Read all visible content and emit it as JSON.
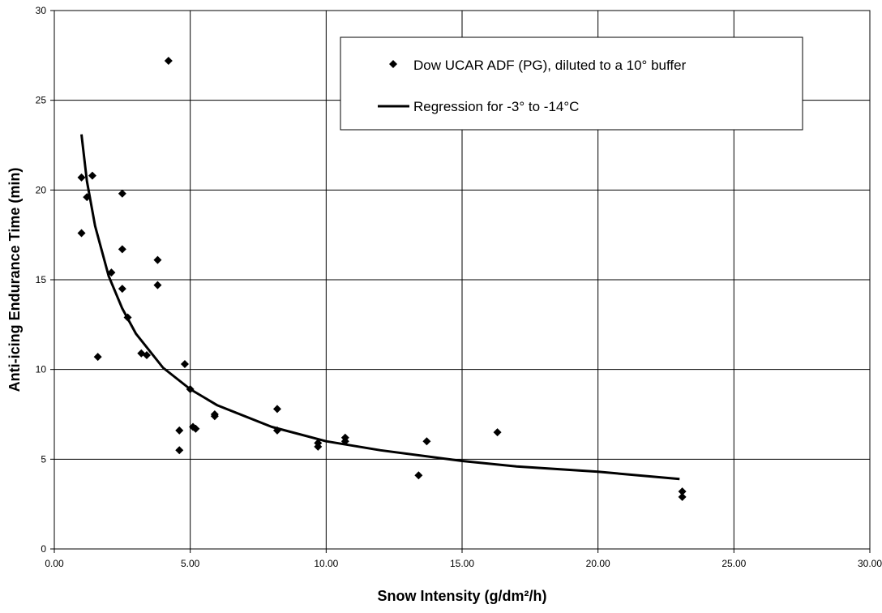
{
  "chart_data": {
    "type": "scatter",
    "xlabel": "Snow Intensity (g/dm²/h)",
    "ylabel": "Anti-icing Endurance Time (min)",
    "xlim": [
      0,
      30
    ],
    "ylim": [
      0,
      30
    ],
    "x_ticks": [
      "0.00",
      "5.00",
      "10.00",
      "15.00",
      "20.00",
      "25.00",
      "30.00"
    ],
    "y_ticks": [
      "0",
      "5",
      "10",
      "15",
      "20",
      "25",
      "30"
    ],
    "grid": true,
    "legend_position": "top-right",
    "series": [
      {
        "name": "Dow UCAR ADF (PG), diluted to a 10° buffer",
        "kind": "scatter",
        "marker": "diamond",
        "color": "#000000",
        "points": [
          [
            1.0,
            20.7
          ],
          [
            1.0,
            17.6
          ],
          [
            1.2,
            19.6
          ],
          [
            1.4,
            20.8
          ],
          [
            1.6,
            10.7
          ],
          [
            2.1,
            15.4
          ],
          [
            2.5,
            19.8
          ],
          [
            2.5,
            16.7
          ],
          [
            2.5,
            14.5
          ],
          [
            2.7,
            12.9
          ],
          [
            3.2,
            10.9
          ],
          [
            3.4,
            10.8
          ],
          [
            3.8,
            16.1
          ],
          [
            3.8,
            14.7
          ],
          [
            4.2,
            27.2
          ],
          [
            4.6,
            6.6
          ],
          [
            4.6,
            5.5
          ],
          [
            4.8,
            10.3
          ],
          [
            5.0,
            8.9
          ],
          [
            5.1,
            6.8
          ],
          [
            5.2,
            6.7
          ],
          [
            5.9,
            7.5
          ],
          [
            5.9,
            7.4
          ],
          [
            8.2,
            7.8
          ],
          [
            8.2,
            6.6
          ],
          [
            9.7,
            5.9
          ],
          [
            9.7,
            5.7
          ],
          [
            10.7,
            6.2
          ],
          [
            10.7,
            6.0
          ],
          [
            13.4,
            4.1
          ],
          [
            13.7,
            6.0
          ],
          [
            16.3,
            6.5
          ],
          [
            23.1,
            3.2
          ],
          [
            23.1,
            2.9
          ]
        ]
      },
      {
        "name": "Regression for -3° to -14°C",
        "kind": "line",
        "color": "#000000",
        "points": [
          [
            1.0,
            23.1
          ],
          [
            1.2,
            20.5
          ],
          [
            1.5,
            18.0
          ],
          [
            2.0,
            15.2
          ],
          [
            2.5,
            13.4
          ],
          [
            3.0,
            12.0
          ],
          [
            4.0,
            10.1
          ],
          [
            5.0,
            8.9
          ],
          [
            6.0,
            8.0
          ],
          [
            8.0,
            6.8
          ],
          [
            10.0,
            6.0
          ],
          [
            12.0,
            5.5
          ],
          [
            15.0,
            4.9
          ],
          [
            17.0,
            4.6
          ],
          [
            20.0,
            4.3
          ],
          [
            23.0,
            3.9
          ]
        ]
      }
    ]
  }
}
